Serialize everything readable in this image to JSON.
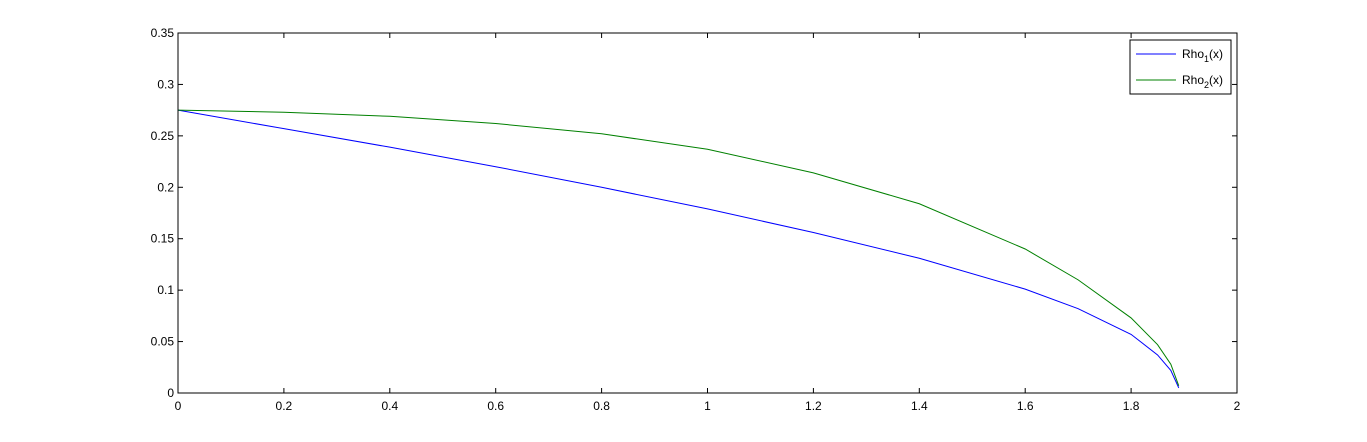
{
  "chart_data": {
    "type": "line",
    "title": "",
    "xlabel": "",
    "ylabel": "",
    "xlim": [
      0,
      2
    ],
    "ylim": [
      0,
      0.35
    ],
    "xticks": [
      0,
      0.2,
      0.4,
      0.6,
      0.8,
      1,
      1.2,
      1.4,
      1.6,
      1.8,
      2
    ],
    "xtick_labels": [
      "0",
      "0.2",
      "0.4",
      "0.6",
      "0.8",
      "1",
      "1.2",
      "1.4",
      "1.6",
      "1.8",
      "2"
    ],
    "yticks": [
      0,
      0.05,
      0.1,
      0.15,
      0.2,
      0.25,
      0.3,
      0.35
    ],
    "ytick_labels": [
      "0",
      "0.05",
      "0.1",
      "0.15",
      "0.2",
      "0.25",
      "0.3",
      "0.35"
    ],
    "grid": false,
    "legend_position": "top-right",
    "series": [
      {
        "legend_prefix": "Rho",
        "legend_subscript": "1",
        "legend_suffix": "(x)",
        "color": "#0000ff",
        "x": [
          0,
          0.2,
          0.4,
          0.6,
          0.8,
          1.0,
          1.2,
          1.4,
          1.6,
          1.7,
          1.8,
          1.85,
          1.875,
          1.89
        ],
        "y": [
          0.275,
          0.257,
          0.239,
          0.22,
          0.2,
          0.179,
          0.156,
          0.131,
          0.101,
          0.082,
          0.057,
          0.037,
          0.022,
          0.005
        ]
      },
      {
        "legend_prefix": "Rho",
        "legend_subscript": "2",
        "legend_suffix": "(x)",
        "color": "#008000",
        "x": [
          0,
          0.2,
          0.4,
          0.6,
          0.8,
          1.0,
          1.2,
          1.4,
          1.6,
          1.7,
          1.8,
          1.85,
          1.875,
          1.89
        ],
        "y": [
          0.275,
          0.273,
          0.269,
          0.262,
          0.252,
          0.237,
          0.214,
          0.184,
          0.14,
          0.11,
          0.073,
          0.047,
          0.028,
          0.007
        ]
      }
    ]
  }
}
